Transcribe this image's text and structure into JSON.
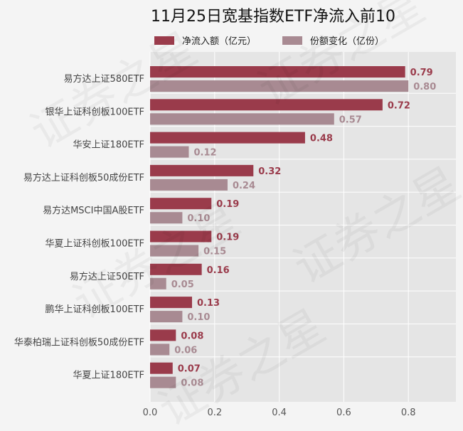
{
  "chart_data": {
    "type": "bar",
    "orientation": "horizontal",
    "title": "11月25日宽基指数ETF净流入前10",
    "categories": [
      "易方达上证580ETF",
      "银华上证科创板100ETF",
      "华安上证180ETF",
      "易方达上证科创板50成份ETF",
      "易方达MSCI中国A股ETF",
      "华夏上证科创板100ETF",
      "易方达上证50ETF",
      "鹏华上证科创板100ETF",
      "华泰柏瑞上证科创板50成份ETF",
      "华夏上证180ETF"
    ],
    "series": [
      {
        "name": "净流入额（亿元）",
        "values": [
          0.79,
          0.72,
          0.48,
          0.32,
          0.19,
          0.19,
          0.16,
          0.13,
          0.08,
          0.07
        ],
        "labels": [
          "0.79",
          "0.72",
          "0.48",
          "0.32",
          "0.19",
          "0.19",
          "0.16",
          "0.13",
          "0.08",
          "0.07"
        ],
        "color": "#9a3b4b"
      },
      {
        "name": "份额变化（亿份）",
        "values": [
          0.8,
          0.57,
          0.12,
          0.24,
          0.1,
          0.15,
          0.05,
          0.1,
          0.06,
          0.08
        ],
        "labels": [
          "0.80",
          "0.57",
          "0.12",
          "0.24",
          "0.10",
          "0.15",
          "0.05",
          "0.10",
          "0.06",
          "0.08"
        ],
        "color": "#a88a92"
      }
    ],
    "xlim": [
      0,
      0.94
    ],
    "xticks": [
      "0.0",
      "0.2",
      "0.4",
      "0.6",
      "0.8"
    ],
    "grid": true,
    "legend": "top",
    "watermark": [
      "证券之星",
      "证券之星",
      "证券之星"
    ],
    "colors": {
      "background": "#f4f4f4",
      "plot_background": "#e5e5e5",
      "grid": "#ffffff"
    }
  }
}
